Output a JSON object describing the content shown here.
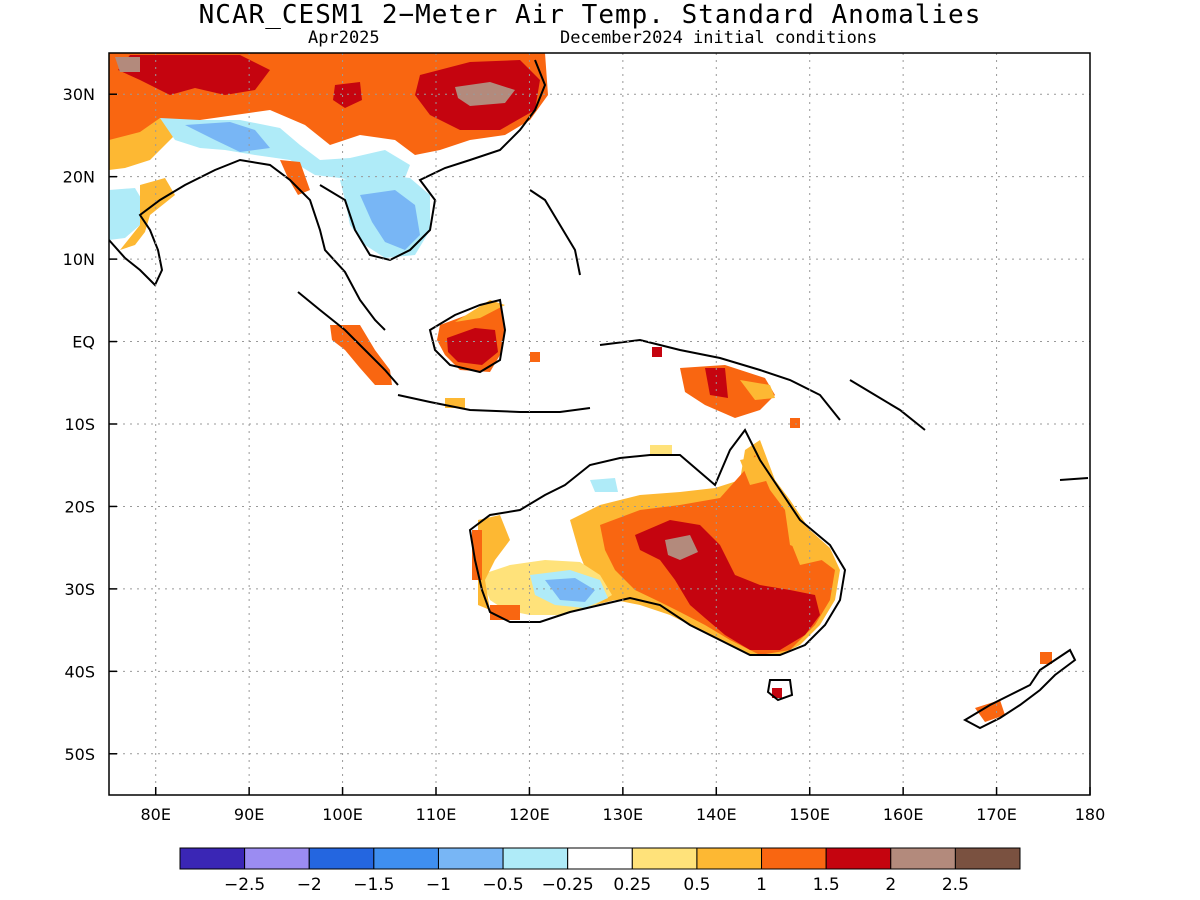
{
  "header": {
    "title": "NCAR_CESM1 2−Meter Air Temp. Standard Anomalies",
    "month": "Apr2025",
    "init": "December2024 initial conditions"
  },
  "axes": {
    "lat_labels": [
      "30N",
      "20N",
      "10N",
      "EQ",
      "10S",
      "20S",
      "30S",
      "40S",
      "50S"
    ],
    "lat_values": [
      30,
      20,
      10,
      0,
      -10,
      -20,
      -30,
      -40,
      -50
    ],
    "lon_labels": [
      "80E",
      "90E",
      "100E",
      "110E",
      "120E",
      "130E",
      "140E",
      "150E",
      "160E",
      "170E",
      "180"
    ],
    "lon_values": [
      80,
      90,
      100,
      110,
      120,
      130,
      140,
      150,
      160,
      170,
      180
    ],
    "lat_range": [
      -55,
      35
    ],
    "lon_range": [
      75,
      180
    ],
    "grid": "dotted"
  },
  "legend": {
    "colors": [
      "#3a26b5",
      "#9b8cf2",
      "#2466e0",
      "#3f8ff0",
      "#78b6f5",
      "#afebf8",
      "#ffffff",
      "#ffe27a",
      "#fdb833",
      "#f96611",
      "#c5040f",
      "#b38a7c",
      "#7a5140"
    ],
    "labels": [
      "−2.5",
      "−2",
      "−1.5",
      "−1",
      "−0.5",
      "−0.25",
      "0.25",
      "0.5",
      "1",
      "1.5",
      "2",
      "2.5"
    ]
  },
  "anomaly_regions": [
    {
      "name": "east-china-warm",
      "level": 1.5,
      "color": "#f96611"
    },
    {
      "name": "east-china-core",
      "level": 2.0,
      "color": "#c5040f"
    },
    {
      "name": "east-china-peak",
      "level": 2.5,
      "color": "#b38a7c"
    },
    {
      "name": "indochina-cool",
      "level": -0.25,
      "color": "#afebf8"
    },
    {
      "name": "indochina-cooler",
      "level": -0.5,
      "color": "#78b6f5"
    },
    {
      "name": "india-cool",
      "level": -0.25,
      "color": "#afebf8"
    },
    {
      "name": "bay-of-bengal-coast-warm",
      "level": 1.0,
      "color": "#fdb833"
    },
    {
      "name": "borneo-warm",
      "level": 1.5,
      "color": "#f96611"
    },
    {
      "name": "borneo-core",
      "level": 2.0,
      "color": "#c5040f"
    },
    {
      "name": "sumatra-warm",
      "level": 1.5,
      "color": "#f96611"
    },
    {
      "name": "new-guinea-warm",
      "level": 1.5,
      "color": "#f96611"
    },
    {
      "name": "new-guinea-core",
      "level": 2.0,
      "color": "#c5040f"
    },
    {
      "name": "australia-interior-warm",
      "level": 1.0,
      "color": "#fdb833"
    },
    {
      "name": "australia-east-warm",
      "level": 1.5,
      "color": "#f96611"
    },
    {
      "name": "australia-southeast-hot",
      "level": 2.0,
      "color": "#c5040f"
    },
    {
      "name": "australia-center-peak",
      "level": 2.5,
      "color": "#b38a7c"
    },
    {
      "name": "south-australia-cool",
      "level": -0.5,
      "color": "#78b6f5"
    },
    {
      "name": "west-australia-warm",
      "level": 0.5,
      "color": "#ffe27a"
    },
    {
      "name": "new-zealand-warm",
      "level": 1.5,
      "color": "#f96611"
    }
  ]
}
